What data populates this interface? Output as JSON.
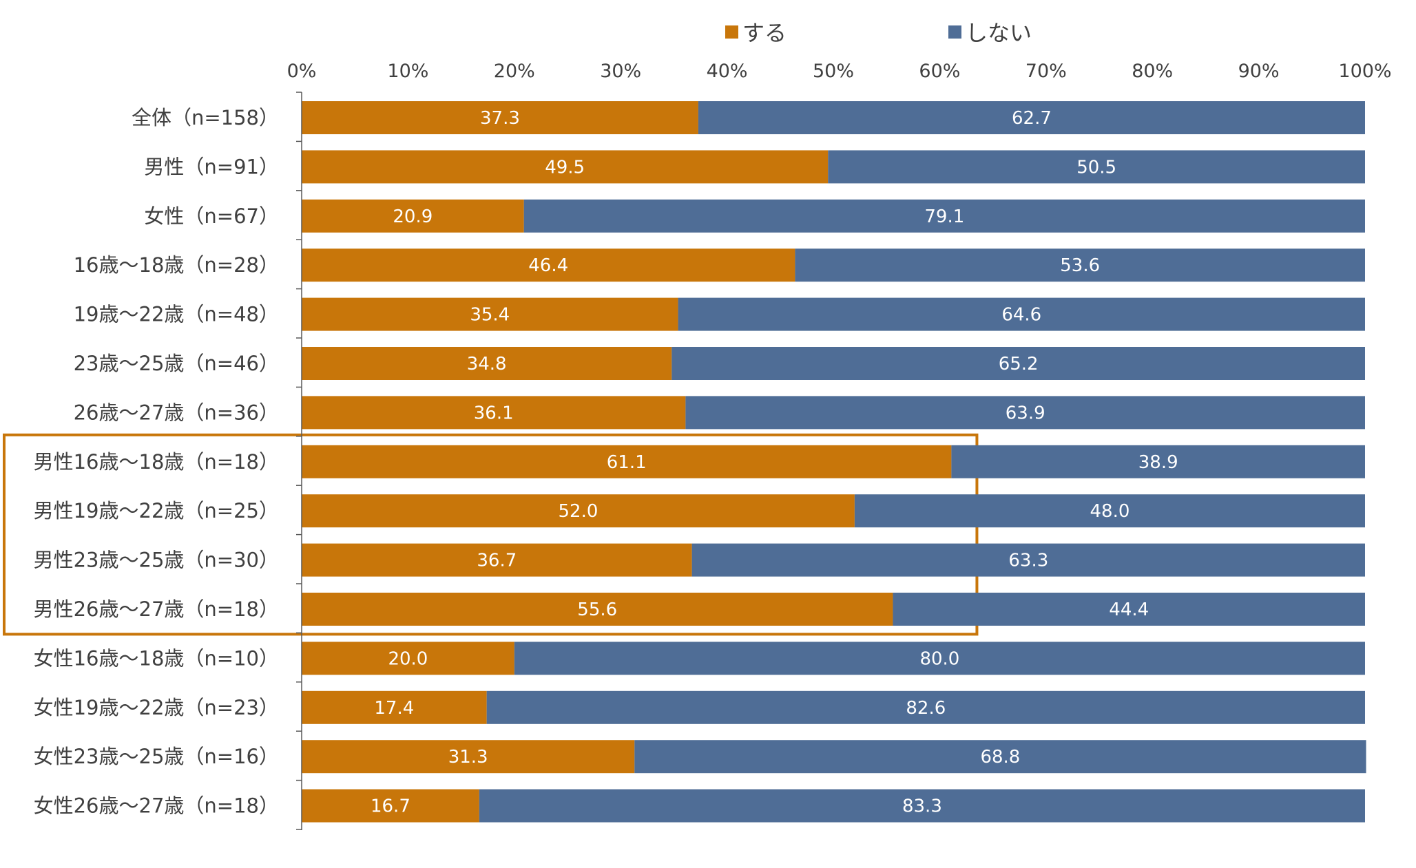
{
  "chart_data": {
    "type": "bar",
    "orientation": "horizontal",
    "stacked": true,
    "title": "",
    "xlabel": "",
    "ylabel": "",
    "xlim": [
      0,
      100
    ],
    "x_ticks": [
      "0%",
      "10%",
      "20%",
      "30%",
      "40%",
      "50%",
      "60%",
      "70%",
      "80%",
      "90%",
      "100%"
    ],
    "legend_position": "top",
    "categories": [
      "全体（n=158）",
      "男性（n=91）",
      "女性（n=67）",
      "16歳〜18歳（n=28）",
      "19歳〜22歳（n=48）",
      "23歳〜25歳（n=46）",
      "26歳〜27歳（n=36）",
      "男性16歳〜18歳（n=18）",
      "男性19歳〜22歳（n=25）",
      "男性23歳〜25歳（n=30）",
      "男性26歳〜27歳（n=18）",
      "女性16歳〜18歳（n=10）",
      "女性19歳〜22歳（n=23）",
      "女性23歳〜25歳（n=16）",
      "女性26歳〜27歳（n=18）"
    ],
    "series": [
      {
        "name": "する",
        "color": "#C8760A",
        "values": [
          37.3,
          49.5,
          20.9,
          46.4,
          35.4,
          34.8,
          36.1,
          61.1,
          52.0,
          36.7,
          55.6,
          20.0,
          17.4,
          31.3,
          16.7
        ],
        "labels": [
          "37.3",
          "49.5",
          "20.9",
          "46.4",
          "35.4",
          "34.8",
          "36.1",
          "61.1",
          "52.0",
          "36.7",
          "55.6",
          "20.0",
          "17.4",
          "31.3",
          "16.7"
        ]
      },
      {
        "name": "しない",
        "color": "#4F6D96",
        "values": [
          62.7,
          50.5,
          79.1,
          53.6,
          64.6,
          65.2,
          63.9,
          38.9,
          48.0,
          63.3,
          44.4,
          80.0,
          82.6,
          68.8,
          83.3
        ],
        "labels": [
          "62.7",
          "50.5",
          "79.1",
          "53.6",
          "64.6",
          "65.2",
          "63.9",
          "38.9",
          "48.0",
          "63.3",
          "44.4",
          "80.0",
          "82.6",
          "68.8",
          "83.3"
        ]
      }
    ],
    "highlight": {
      "from_index": 7,
      "to_index": 10,
      "max_value": 63.5,
      "color": "#C8760A"
    },
    "colors": {
      "axis": "#595959",
      "text": "#404040",
      "bar_text": "#ffffff"
    }
  }
}
